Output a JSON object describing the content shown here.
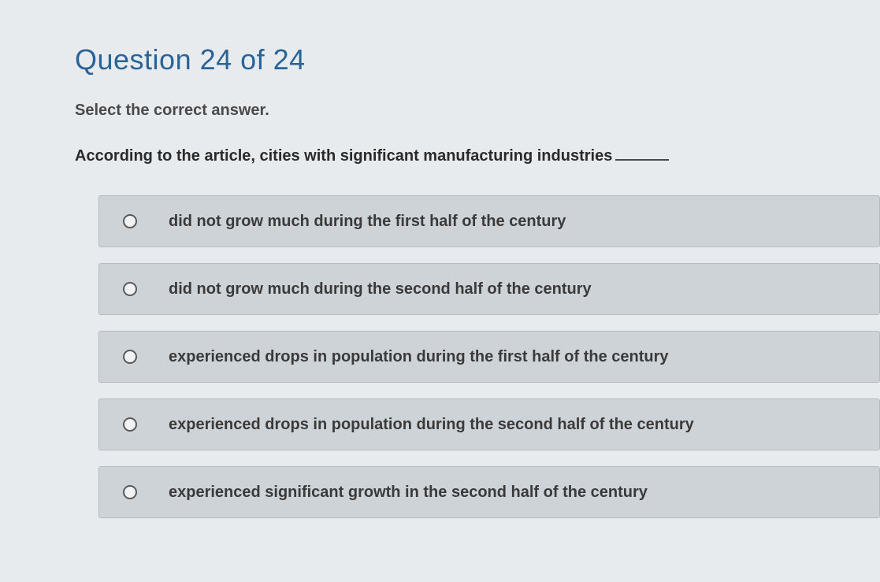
{
  "question": {
    "title": "Question 24 of 24",
    "instruction": "Select the correct answer.",
    "stem": "According to the article, cities with significant manufacturing industries"
  },
  "options": [
    {
      "text": "did not grow much during the first half of the century"
    },
    {
      "text": "did not grow much during the second half of the century"
    },
    {
      "text": "experienced drops in population during the first half of the century"
    },
    {
      "text": "experienced drops in population during the second half of the century"
    },
    {
      "text": "experienced significant growth in the second half of the century"
    }
  ],
  "styling": {
    "title_color": "#2a6496",
    "body_background": "#d8dce0",
    "container_background": "#e8ebed",
    "option_background": "#ced3d8",
    "option_border": "#b6bbc0",
    "option_text_color": "#3a3a3a",
    "title_fontsize": 36,
    "instruction_fontsize": 20,
    "stem_fontsize": 20,
    "option_fontsize": 20
  }
}
